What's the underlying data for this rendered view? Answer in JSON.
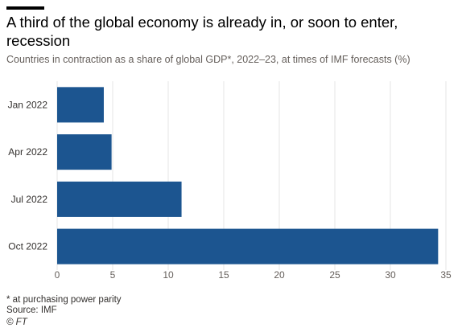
{
  "header": {
    "title": "A third of the global economy is already in, or soon to enter, recession",
    "subtitle": "Countries in contraction as a share of global GDP*, 2022–23, at times of IMF forecasts (%)"
  },
  "chart_data": {
    "type": "bar",
    "orientation": "horizontal",
    "categories": [
      "Jan 2022",
      "Apr 2022",
      "Jul 2022",
      "Oct 2022"
    ],
    "values": [
      4.2,
      4.9,
      11.2,
      34.3
    ],
    "x_ticks": [
      0,
      5,
      10,
      15,
      20,
      25,
      30,
      35
    ],
    "xlim": [
      0,
      35
    ],
    "grid": "vertical",
    "bar_color": "#1c5590",
    "grid_color": "#e6e6e6"
  },
  "footer": {
    "footnote": "* at purchasing power parity",
    "source": "Source: IMF",
    "copyright": "© FT"
  }
}
